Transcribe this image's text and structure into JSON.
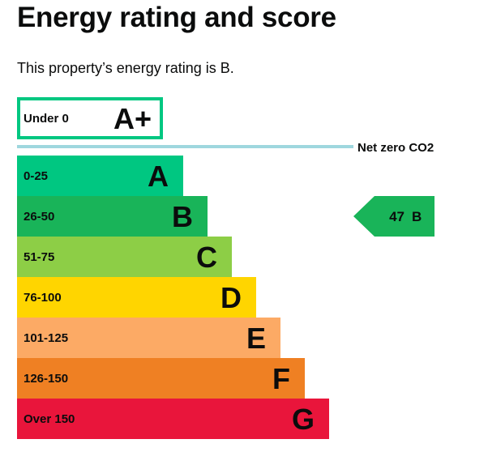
{
  "page": {
    "heading": "Energy rating and score",
    "summary": "This property’s energy rating is B."
  },
  "chart_data": {
    "type": "bar",
    "title": "",
    "bands": [
      {
        "range": "Under 0",
        "letter": "A+",
        "color": "#00c781",
        "outlined": true
      },
      {
        "range": "0-25",
        "letter": "A",
        "color": "#00c781"
      },
      {
        "range": "26-50",
        "letter": "B",
        "color": "#19b459"
      },
      {
        "range": "51-75",
        "letter": "C",
        "color": "#8dce46"
      },
      {
        "range": "76-100",
        "letter": "D",
        "color": "#ffd500"
      },
      {
        "range": "101-125",
        "letter": "E",
        "color": "#fcaa65"
      },
      {
        "range": "126-150",
        "letter": "F",
        "color": "#ef8023"
      },
      {
        "range": "Over 150",
        "letter": "G",
        "color": "#e9153b"
      }
    ],
    "divider_label": "Net zero CO2",
    "divider_color": "#9ed7de",
    "current_rating": {
      "score": 47,
      "letter": "B",
      "band_index": 2,
      "color": "#19b459"
    }
  }
}
